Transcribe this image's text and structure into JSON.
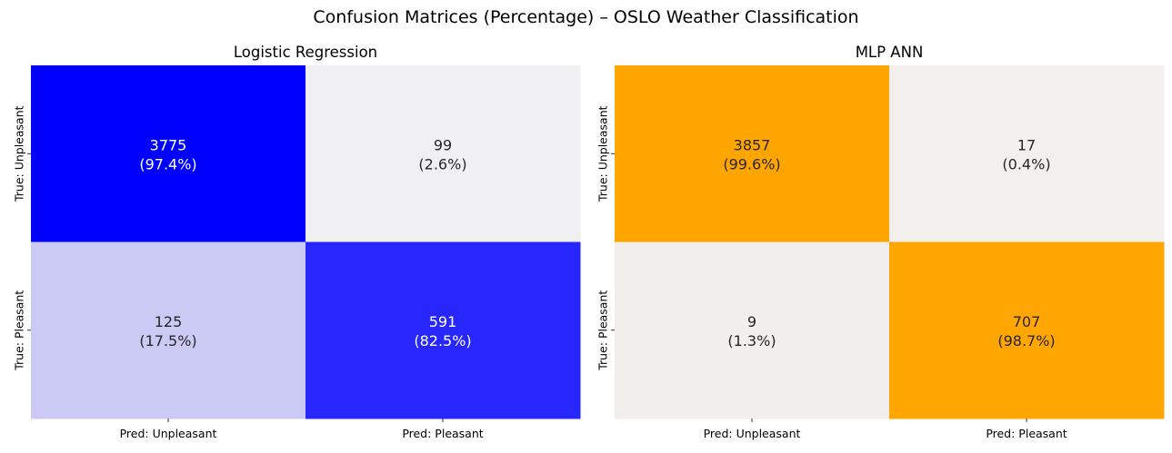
{
  "suptitle": "Confusion Matrices (Percentage) – OSLO Weather Classification",
  "chart_data": [
    {
      "type": "heatmap",
      "title": "Logistic Regression",
      "x_labels": [
        "Pred: Unpleasant",
        "Pred: Pleasant"
      ],
      "y_labels": [
        "True: Unpleasant",
        "True: Pleasant"
      ],
      "counts": [
        [
          3775,
          99
        ],
        [
          125,
          591
        ]
      ],
      "percent_labels": [
        [
          "(97.4%)",
          "(2.6%)"
        ],
        [
          "(17.5%)",
          "(82.5%)"
        ]
      ],
      "percentages": [
        [
          97.4,
          2.6
        ],
        [
          17.5,
          82.5
        ]
      ],
      "colormap": {
        "low": "#f0f0f2",
        "high": "#0000ff"
      },
      "colorbar": false
    },
    {
      "type": "heatmap",
      "title": "MLP ANN",
      "x_labels": [
        "Pred: Unpleasant",
        "Pred: Pleasant"
      ],
      "y_labels": [
        "True: Unpleasant",
        "True: Pleasant"
      ],
      "counts": [
        [
          3857,
          17
        ],
        [
          9,
          707
        ]
      ],
      "percent_labels": [
        [
          "(99.6%)",
          "(0.4%)"
        ],
        [
          "(1.3%)",
          "(98.7%)"
        ]
      ],
      "percentages": [
        [
          99.6,
          0.4
        ],
        [
          1.3,
          98.7
        ]
      ],
      "colormap": {
        "low": "#f2efed",
        "high": "#ffa500"
      },
      "colorbar": false
    }
  ]
}
